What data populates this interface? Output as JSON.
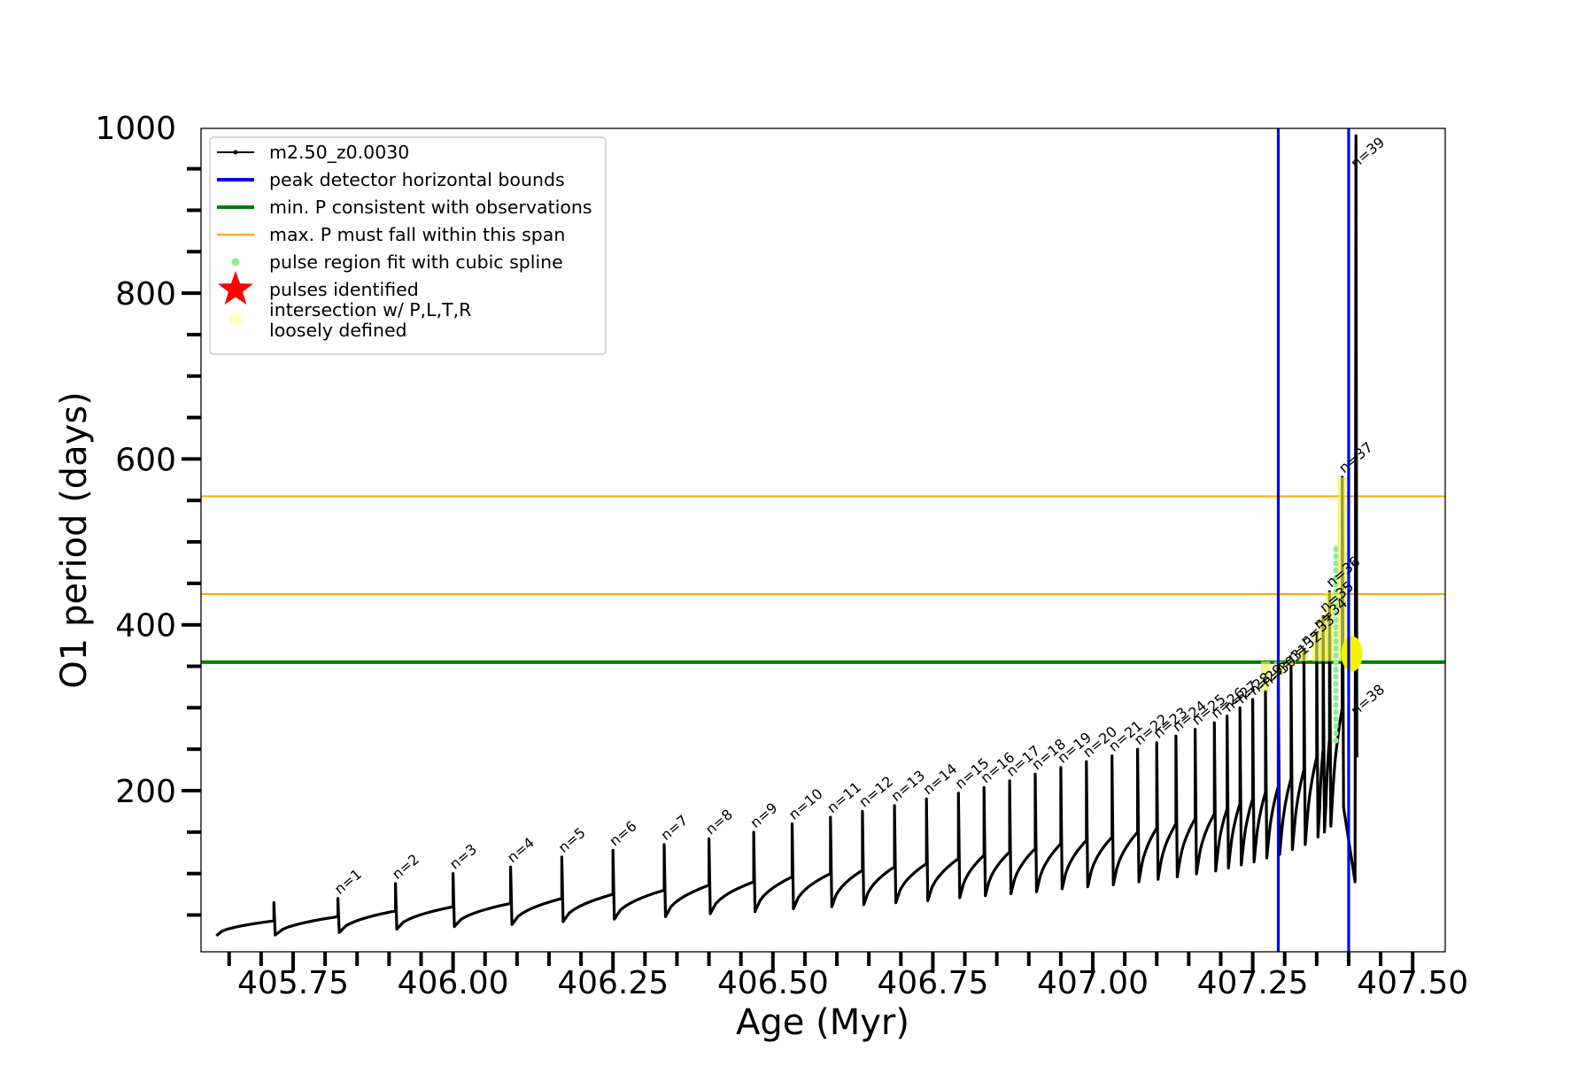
{
  "chart_data": {
    "type": "line",
    "title": "",
    "xlabel": "Age (Myr)",
    "ylabel": "O1 period (days)",
    "xlim": [
      405.54,
      407.5
    ],
    "ylim": [
      0,
      1000
    ],
    "x_ticks": [
      405.75,
      406.0,
      406.25,
      406.5,
      406.75,
      407.0,
      407.25,
      407.5
    ],
    "x_tick_labels": [
      "405.75",
      "406.00",
      "406.25",
      "406.50",
      "406.75",
      "407.00",
      "407.25",
      "407.50"
    ],
    "y_ticks": [
      200,
      400,
      600,
      800,
      1000
    ],
    "y_tick_labels": [
      "200",
      "400",
      "600",
      "800",
      "1000"
    ],
    "grid": false,
    "legend_position": "top-left",
    "legend": [
      {
        "label": "m2.50_z0.0030",
        "kind": "line-marker",
        "color": "#000000"
      },
      {
        "label": "peak detector horizontal bounds",
        "kind": "line",
        "color": "#0000ff"
      },
      {
        "label": "min. P consistent with observations",
        "kind": "line",
        "color": "#008000"
      },
      {
        "label": "max. P must fall within this span",
        "kind": "thin-line",
        "color": "#ffa500"
      },
      {
        "label": "pulse region fit with cubic spline",
        "kind": "dot",
        "color": "#90ee90"
      },
      {
        "label": "pulses identified",
        "kind": "star",
        "color": "#ff0000"
      },
      {
        "label": "intersection w/ P,L,T,R\nloosely defined",
        "kind": "dot",
        "color": "#ffffc8"
      }
    ],
    "vertical_lines": [
      {
        "x": 407.29,
        "color": "#0000ff"
      },
      {
        "x": 407.4,
        "color": "#0000ff"
      }
    ],
    "horizontal_lines": [
      {
        "y": 355,
        "color": "#008000",
        "kind": "thick"
      },
      {
        "y": 437,
        "color": "#ffa500",
        "kind": "thin"
      },
      {
        "y": 555,
        "color": "#ffa500",
        "kind": "thin"
      }
    ],
    "series_name": "m2.50_z0.0030",
    "series_color": "#000000",
    "series": {
      "start": [
        405.63,
        25
      ],
      "first_jump": {
        "x": 405.72,
        "y": 65
      },
      "end": [
        407.41,
        90
      ]
    },
    "pulses": [
      {
        "label": "n=1",
        "x": 405.82,
        "base": 48,
        "peak": 70
      },
      {
        "label": "n=2",
        "x": 405.91,
        "base": 55,
        "peak": 88
      },
      {
        "label": "n=3",
        "x": 406.0,
        "base": 60,
        "peak": 100
      },
      {
        "label": "n=4",
        "x": 406.09,
        "base": 64,
        "peak": 108
      },
      {
        "label": "n=5",
        "x": 406.17,
        "base": 70,
        "peak": 120
      },
      {
        "label": "n=6",
        "x": 406.25,
        "base": 75,
        "peak": 128
      },
      {
        "label": "n=7",
        "x": 406.33,
        "base": 80,
        "peak": 135
      },
      {
        "label": "n=8",
        "x": 406.4,
        "base": 86,
        "peak": 142
      },
      {
        "label": "n=9",
        "x": 406.47,
        "base": 90,
        "peak": 150
      },
      {
        "label": "n=10",
        "x": 406.53,
        "base": 96,
        "peak": 160
      },
      {
        "label": "n=11",
        "x": 406.59,
        "base": 100,
        "peak": 168
      },
      {
        "label": "n=12",
        "x": 406.64,
        "base": 104,
        "peak": 175
      },
      {
        "label": "n=13",
        "x": 406.69,
        "base": 108,
        "peak": 182
      },
      {
        "label": "n=14",
        "x": 406.74,
        "base": 112,
        "peak": 190
      },
      {
        "label": "n=15",
        "x": 406.79,
        "base": 118,
        "peak": 197
      },
      {
        "label": "n=16",
        "x": 406.83,
        "base": 122,
        "peak": 204
      },
      {
        "label": "n=17",
        "x": 406.87,
        "base": 126,
        "peak": 212
      },
      {
        "label": "n=18",
        "x": 406.91,
        "base": 130,
        "peak": 220
      },
      {
        "label": "n=19",
        "x": 406.95,
        "base": 136,
        "peak": 228
      },
      {
        "label": "n=20",
        "x": 406.99,
        "base": 140,
        "peak": 235
      },
      {
        "label": "n=21",
        "x": 407.03,
        "base": 144,
        "peak": 242
      },
      {
        "label": "n=22",
        "x": 407.07,
        "base": 150,
        "peak": 250
      },
      {
        "label": "n=23",
        "x": 407.1,
        "base": 155,
        "peak": 258
      },
      {
        "label": "n=24",
        "x": 407.13,
        "base": 160,
        "peak": 266
      },
      {
        "label": "n=25",
        "x": 407.16,
        "base": 166,
        "peak": 274
      },
      {
        "label": "n=26",
        "x": 407.19,
        "base": 172,
        "peak": 282
      },
      {
        "label": "n=27",
        "x": 407.21,
        "base": 178,
        "peak": 290
      },
      {
        "label": "n=28",
        "x": 407.23,
        "base": 184,
        "peak": 300
      },
      {
        "label": "n=29",
        "x": 407.25,
        "base": 190,
        "peak": 310
      },
      {
        "label": "n=30",
        "x": 407.27,
        "base": 198,
        "peak": 320
      },
      {
        "label": "n=31",
        "x": 407.29,
        "base": 205,
        "peak": 335
      },
      {
        "label": "n=32",
        "x": 407.31,
        "base": 215,
        "peak": 350
      },
      {
        "label": "n=33",
        "x": 407.33,
        "base": 225,
        "peak": 370
      },
      {
        "label": "n=34",
        "x": 407.35,
        "base": 240,
        "peak": 390
      },
      {
        "label": "n=35",
        "x": 407.36,
        "base": 250,
        "peak": 410
      },
      {
        "label": "n=36",
        "x": 407.37,
        "base": 262,
        "peak": 440
      },
      {
        "label": "n=37",
        "x": 407.39,
        "base": 300,
        "peak": 578
      }
    ],
    "spike_labels": [
      {
        "label": "n=38",
        "x": 407.4,
        "y": 290
      },
      {
        "label": "n=39",
        "x": 407.4,
        "y": 950
      }
    ]
  }
}
